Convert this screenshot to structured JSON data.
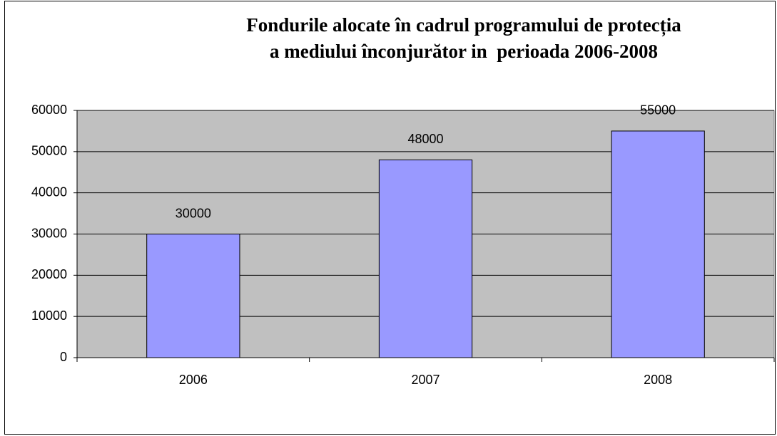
{
  "chart_data": {
    "type": "bar",
    "title": [
      "Fondurile alocate în cadrul programului de protecția",
      "a mediului înconjurător in  perioada 2006-2008"
    ],
    "categories": [
      "2006",
      "2007",
      "2008"
    ],
    "values": [
      30000,
      48000,
      55000
    ],
    "color": "#9999ff",
    "ylim": [
      0,
      60000
    ],
    "yticks": [
      0,
      10000,
      20000,
      30000,
      40000,
      50000,
      60000
    ],
    "grid": true
  }
}
